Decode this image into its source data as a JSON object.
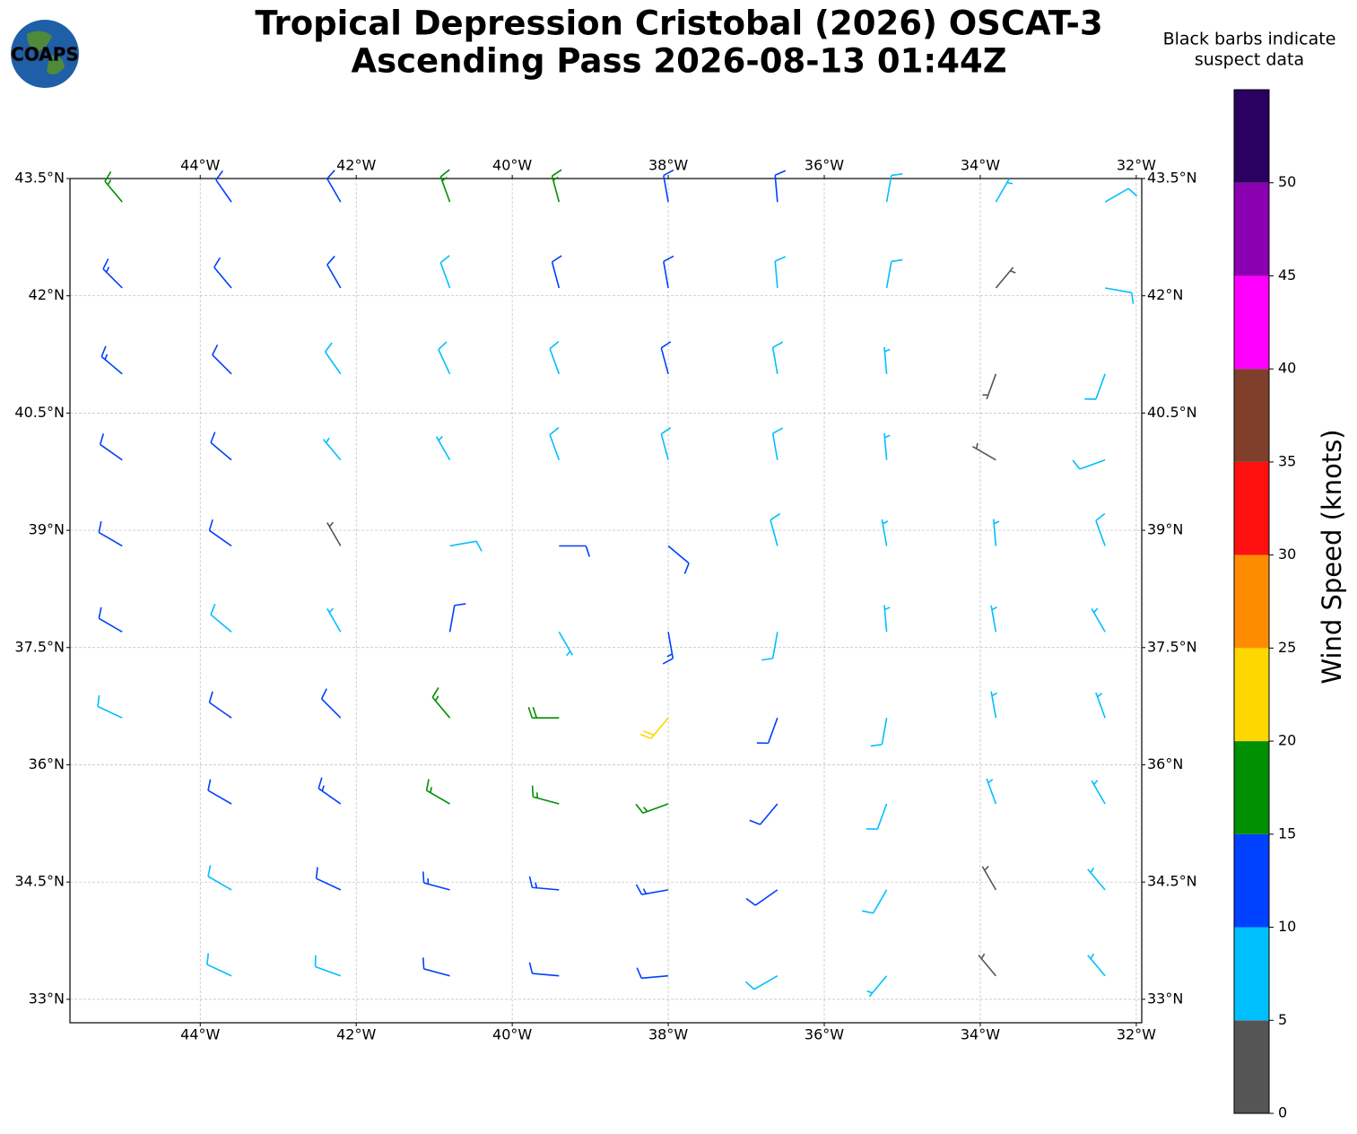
{
  "logo_text": "COAPS",
  "title_lines": [
    "Tropical Depression Cristobal (2026) OSCAT-3",
    "Ascending Pass 2026-08-13 01:44Z"
  ],
  "note_lines": [
    "Black barbs indicate",
    "suspect data"
  ],
  "map": {
    "xlim": [
      -45.67,
      -31.93
    ],
    "ylim": [
      32.7,
      43.5
    ],
    "grid": true,
    "xticks": [
      {
        "value": -44,
        "label": "44°W"
      },
      {
        "value": -42,
        "label": "42°W"
      },
      {
        "value": -40,
        "label": "40°W"
      },
      {
        "value": -38,
        "label": "38°W"
      },
      {
        "value": -36,
        "label": "36°W"
      },
      {
        "value": -34,
        "label": "34°W"
      },
      {
        "value": -32,
        "label": "32°W"
      }
    ],
    "yticks": [
      {
        "value": 33,
        "label": "33°N"
      },
      {
        "value": 34.5,
        "label": "34.5°N"
      },
      {
        "value": 36,
        "label": "36°N"
      },
      {
        "value": 37.5,
        "label": "37.5°N"
      },
      {
        "value": 39,
        "label": "39°N"
      },
      {
        "value": 40.5,
        "label": "40.5°N"
      },
      {
        "value": 42,
        "label": "42°N"
      },
      {
        "value": 43.5,
        "label": "43.5°N"
      }
    ],
    "barbs": {
      "lon": [
        -45,
        -43.6,
        -42.2,
        -40.8,
        -39.4,
        -38,
        -36.6,
        -35.2,
        -33.8,
        -32.4,
        -45,
        -43.6,
        -42.2,
        -40.8,
        -39.4,
        -38,
        -36.6,
        -35.2,
        -33.8,
        -32.4,
        -45,
        -43.6,
        -42.2,
        -40.8,
        -39.4,
        -38,
        -36.6,
        -35.2,
        -33.8,
        -32.4,
        -45,
        -43.6,
        -42.2,
        -40.8,
        -39.4,
        -38,
        -36.6,
        -35.2,
        -33.8,
        -32.4,
        -45,
        -43.6,
        -42.2,
        -40.8,
        -39.4,
        -38,
        -36.6,
        -35.2,
        -33.8,
        -32.4,
        -45,
        -43.6,
        -42.2,
        -40.8,
        -39.4,
        -38,
        -36.6,
        -35.2,
        -33.8,
        -32.4,
        -45,
        -43.6,
        -42.2,
        -40.8,
        -39.4,
        -38,
        -36.6,
        -35.2,
        -33.8,
        -32.4,
        -43.6,
        -42.2,
        -40.8,
        -39.4,
        -38,
        -36.6,
        -35.2,
        -33.8,
        -32.4,
        -43.6,
        -42.2,
        -40.8,
        -39.4,
        -38,
        -36.6,
        -35.2,
        -33.8,
        -32.4,
        -43.6,
        -42.2,
        -40.8,
        -39.4,
        -38,
        -36.6,
        -35.2,
        -33.8,
        -32.4
      ],
      "lat": [
        43.2,
        43.2,
        43.2,
        43.2,
        43.2,
        43.2,
        43.2,
        43.2,
        43.2,
        43.2,
        42.1,
        42.1,
        42.1,
        42.1,
        42.1,
        42.1,
        42.1,
        42.1,
        42.1,
        42.1,
        41,
        41,
        41,
        41,
        41,
        41,
        41,
        41,
        41,
        41,
        39.9,
        39.9,
        39.9,
        39.9,
        39.9,
        39.9,
        39.9,
        39.9,
        39.9,
        39.9,
        38.8,
        38.8,
        38.8,
        38.8,
        38.8,
        38.8,
        38.8,
        38.8,
        38.8,
        38.8,
        37.7,
        37.7,
        37.7,
        37.7,
        37.7,
        37.7,
        37.7,
        37.7,
        37.7,
        37.7,
        36.6,
        36.6,
        36.6,
        36.6,
        36.6,
        36.6,
        36.6,
        36.6,
        36.6,
        36.6,
        35.5,
        35.5,
        35.5,
        35.5,
        35.5,
        35.5,
        35.5,
        35.5,
        35.5,
        34.4,
        34.4,
        34.4,
        34.4,
        34.4,
        34.4,
        34.4,
        34.4,
        34.4,
        33.3,
        33.3,
        33.3,
        33.3,
        33.3,
        33.3,
        33.3,
        33.3,
        33.3
      ],
      "speed": [
        16,
        12,
        12,
        16,
        16,
        12,
        12,
        8,
        7,
        8,
        13,
        12,
        11,
        9,
        11,
        12,
        9,
        8,
        4,
        8,
        13,
        12,
        9,
        8,
        9,
        11,
        8,
        7,
        3,
        9,
        12,
        11,
        7,
        7,
        8,
        9,
        8,
        7,
        4,
        9,
        11,
        11,
        4,
        8,
        10,
        11,
        8,
        7,
        7,
        8,
        12,
        8,
        7,
        10,
        7,
        14,
        9,
        7,
        6,
        5,
        8,
        10,
        12,
        17,
        18,
        20,
        12,
        8,
        6,
        5,
        10,
        13,
        16,
        17,
        15,
        12,
        9,
        5,
        7,
        9,
        11,
        13,
        14,
        14,
        11,
        8,
        4,
        7,
        8,
        9,
        11,
        12,
        11,
        9,
        7,
        4,
        6
      ],
      "direction": [
        320,
        325,
        330,
        340,
        345,
        350,
        355,
        10,
        30,
        60,
        315,
        320,
        330,
        340,
        345,
        350,
        355,
        10,
        40,
        100,
        310,
        315,
        325,
        335,
        340,
        345,
        350,
        355,
        200,
        200,
        305,
        310,
        320,
        330,
        340,
        345,
        350,
        355,
        300,
        250,
        300,
        305,
        330,
        80,
        90,
        130,
        345,
        350,
        355,
        340,
        300,
        310,
        330,
        10,
        150,
        170,
        190,
        355,
        350,
        330,
        295,
        305,
        315,
        320,
        270,
        220,
        200,
        190,
        350,
        340,
        300,
        305,
        300,
        285,
        250,
        220,
        200,
        340,
        330,
        300,
        295,
        285,
        275,
        260,
        235,
        210,
        330,
        320,
        295,
        290,
        285,
        275,
        265,
        240,
        220,
        320,
        320
      ]
    }
  },
  "colorbar": {
    "label": "Wind Speed (knots)",
    "bins": [
      0,
      5,
      10,
      15,
      20,
      25,
      30,
      35,
      40,
      45,
      50,
      55
    ],
    "colors": [
      "#555555",
      "#00bfff",
      "#0040ff",
      "#008f00",
      "#ffd700",
      "#ff8c00",
      "#ff1010",
      "#803f2a",
      "#ff00ff",
      "#8b00b0",
      "#2a0060"
    ],
    "ticks": [
      0,
      5,
      10,
      15,
      20,
      25,
      30,
      35,
      40,
      45,
      50
    ]
  }
}
